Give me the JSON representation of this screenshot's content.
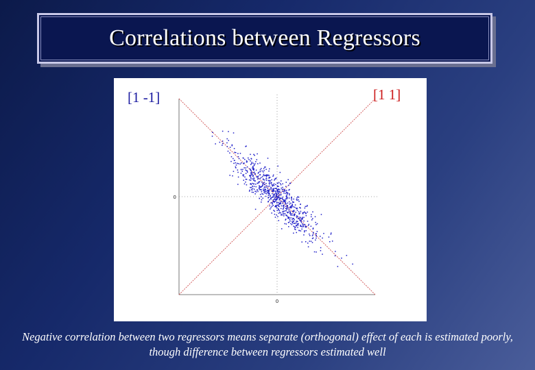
{
  "slide": {
    "title": "Correlations between Regressors",
    "caption": "Negative correlation between two regressors means separate (orthogonal) effect of each is estimated poorly, though difference between regressors estimated well"
  },
  "chart_data": {
    "type": "scatter",
    "title": "",
    "xlabel": "",
    "ylabel": "",
    "xlim": [
      -1,
      1
    ],
    "ylim": [
      -1,
      1
    ],
    "x_ticks": [
      "0"
    ],
    "y_ticks": [
      "0"
    ],
    "grid": false,
    "contrast_labels": {
      "negative": "[1 -1]",
      "positive": "[1 1]"
    },
    "reference_lines": [
      {
        "contrast": "[1 -1]",
        "slope": -1,
        "color": "#d05050"
      },
      {
        "contrast": "[1 1]",
        "slope": 1,
        "color": "#d05050"
      }
    ],
    "series": [
      {
        "points": {
          "n": 800,
          "correlation": -0.9,
          "spread_along": 0.32,
          "spread_across": 0.075
        },
        "color": "#1e1ec8"
      }
    ]
  }
}
